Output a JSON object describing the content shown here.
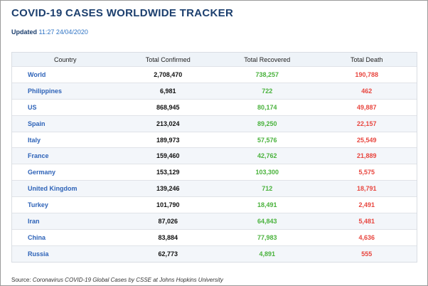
{
  "title": "COVID-19 CASES WORLDWIDE TRACKER",
  "updated": {
    "label": "Updated",
    "timestamp": "11:27 24/04/2020"
  },
  "table": {
    "headers": [
      "Country",
      "Total Confirmed",
      "Total Recovered",
      "Total Death"
    ],
    "rows": [
      {
        "country": "World",
        "confirmed": "2,708,470",
        "recovered": "738,257",
        "death": "190,788"
      },
      {
        "country": "Philippines",
        "confirmed": "6,981",
        "recovered": "722",
        "death": "462"
      },
      {
        "country": "US",
        "confirmed": "868,945",
        "recovered": "80,174",
        "death": "49,887"
      },
      {
        "country": "Spain",
        "confirmed": "213,024",
        "recovered": "89,250",
        "death": "22,157"
      },
      {
        "country": "Italy",
        "confirmed": "189,973",
        "recovered": "57,576",
        "death": "25,549"
      },
      {
        "country": "France",
        "confirmed": "159,460",
        "recovered": "42,762",
        "death": "21,889"
      },
      {
        "country": "Germany",
        "confirmed": "153,129",
        "recovered": "103,300",
        "death": "5,575"
      },
      {
        "country": "United Kingdom",
        "confirmed": "139,246",
        "recovered": "712",
        "death": "18,791"
      },
      {
        "country": "Turkey",
        "confirmed": "101,790",
        "recovered": "18,491",
        "death": "2,491"
      },
      {
        "country": "Iran",
        "confirmed": "87,026",
        "recovered": "64,843",
        "death": "5,481"
      },
      {
        "country": "China",
        "confirmed": "83,884",
        "recovered": "77,983",
        "death": "4,636"
      },
      {
        "country": "Russia",
        "confirmed": "62,773",
        "recovered": "4,891",
        "death": "555"
      }
    ]
  },
  "source": {
    "label": "Source:",
    "text": "Coronavirus COVID-19 Global Cases by CSSE at Johns Hopkins University"
  },
  "colors": {
    "title": "#1c3f6e",
    "country": "#2e63b8",
    "recovered": "#49b23c",
    "death": "#e8463f"
  }
}
